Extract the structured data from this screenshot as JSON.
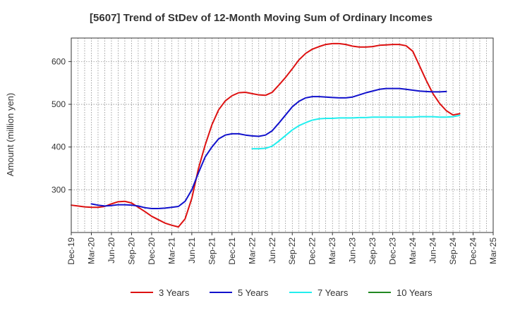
{
  "chart_data": {
    "type": "line",
    "title": "[5607]  Trend of StDev of 12-Month Moving Sum of Ordinary Incomes",
    "xlabel": "",
    "ylabel": "Amount (million yen)",
    "ylim": [
      200,
      655
    ],
    "yticks": [
      300,
      400,
      500,
      600
    ],
    "x_tick_labels": [
      "Dec-19",
      "Mar-20",
      "Jun-20",
      "Sep-20",
      "Dec-20",
      "Mar-21",
      "Jun-21",
      "Sep-21",
      "Dec-21",
      "Mar-22",
      "Jun-22",
      "Sep-22",
      "Dec-22",
      "Mar-23",
      "Jun-23",
      "Sep-23",
      "Dec-23",
      "Mar-24",
      "Jun-24",
      "Sep-24",
      "Dec-24",
      "Mar-25"
    ],
    "grid": true,
    "legend_position": "bottom",
    "series": [
      {
        "name": "3 Years",
        "color": "#dd1111",
        "start_month_index": 0,
        "values": [
          264,
          262,
          260,
          259,
          259,
          261,
          267,
          272,
          273,
          269,
          259,
          249,
          238,
          230,
          222,
          217,
          213,
          232,
          280,
          350,
          405,
          452,
          487,
          508,
          520,
          527,
          528,
          525,
          522,
          521,
          528,
          545,
          563,
          583,
          604,
          619,
          629,
          635,
          640,
          642,
          642,
          640,
          636,
          634,
          634,
          635,
          638,
          639,
          640,
          640,
          637,
          624,
          590,
          556,
          525,
          502,
          485,
          475,
          478
        ]
      },
      {
        "name": "5 Years",
        "color": "#1111cc",
        "start_month_index": 3,
        "values": [
          267,
          264,
          262,
          263,
          265,
          265,
          264,
          262,
          258,
          256,
          256,
          257,
          259,
          261,
          273,
          300,
          340,
          377,
          400,
          419,
          428,
          431,
          431,
          428,
          426,
          425,
          428,
          438,
          456,
          475,
          494,
          507,
          515,
          518,
          518,
          517,
          516,
          515,
          515,
          517,
          522,
          527,
          531,
          535,
          537,
          537,
          537,
          535,
          533,
          531,
          530,
          529,
          529,
          530
        ]
      },
      {
        "name": "7 Years",
        "color": "#22eeee",
        "start_month_index": 27,
        "values": [
          396,
          396,
          397,
          402,
          414,
          427,
          440,
          450,
          457,
          463,
          466,
          467,
          467,
          468,
          468,
          468,
          469,
          469,
          470,
          470,
          470,
          470,
          470,
          470,
          470,
          471,
          471,
          471,
          470,
          470,
          471,
          474
        ]
      },
      {
        "name": "10 Years",
        "color": "#228822",
        "start_month_index": 0,
        "values": []
      }
    ]
  }
}
